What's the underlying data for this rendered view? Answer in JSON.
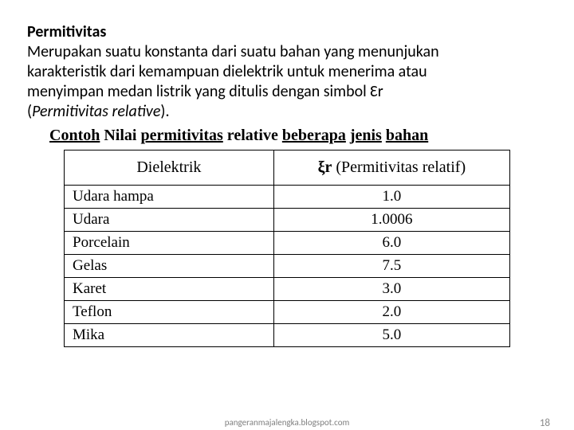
{
  "title": "Permitivitas",
  "paragraph": {
    "line1": "Merupakan suatu konstanta dari suatu bahan yang menunjukan",
    "line2": "karakteristik dari kemampuan dielektrik untuk menerima atau",
    "line3_a": "menyimpan medan listrik yang ditulis dengan simbol ",
    "line3_b": "Ɛr",
    "line4_a": "(",
    "line4_b": "Permitivitas relative",
    "line4_c": ")."
  },
  "subheading": {
    "a": "Contoh",
    "b": " Nilai ",
    "c": "permitivitas",
    "d": " relative ",
    "e": "beberapa",
    "f": " ",
    "g": "jenis",
    "h": " ",
    "i": "bahan"
  },
  "table": {
    "headers": {
      "col1": "Dielektrik",
      "col2_symbol": "ξr",
      "col2_rest": " (Permitivitas relatif)"
    },
    "rows": [
      {
        "name": "Udara hampa",
        "value": "1.0"
      },
      {
        "name": "Udara",
        "value": "1.0006"
      },
      {
        "name": "Porcelain",
        "value": "6.0"
      },
      {
        "name": "Gelas",
        "value": "7.5"
      },
      {
        "name": "Karet",
        "value": "3.0"
      },
      {
        "name": "Teflon",
        "value": "2.0"
      },
      {
        "name": "Mika",
        "value": "5.0"
      }
    ]
  },
  "footer": {
    "source": "pangeranmajalengka.blogspot.com",
    "page": "18"
  },
  "colors": {
    "text": "#000000",
    "footer": "#7f7f7f",
    "background": "#ffffff",
    "border": "#000000"
  }
}
